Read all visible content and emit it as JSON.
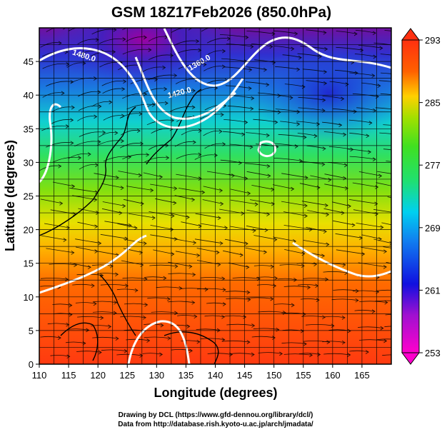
{
  "title": "GSM 18Z17Feb2026 (850.0hPa)",
  "x_axis": {
    "label": "Longitude (degrees)",
    "range": [
      110,
      170
    ],
    "ticks": [
      "110",
      "115",
      "120",
      "125",
      "130",
      "135",
      "140",
      "145",
      "150",
      "155",
      "160",
      "165"
    ]
  },
  "y_axis": {
    "label": "Latitude  (degrees)",
    "range": [
      0,
      50
    ],
    "ticks": [
      "0",
      "5",
      "10",
      "15",
      "20",
      "25",
      "30",
      "35",
      "40",
      "45"
    ]
  },
  "colorbar": {
    "range": [
      253,
      293
    ],
    "tick_labels": [
      "293",
      "285",
      "277",
      "269",
      "261",
      "253"
    ],
    "tick_values": [
      293,
      285,
      277,
      269,
      261,
      253
    ],
    "colors": [
      "#ff00cc",
      "#1010e0",
      "#00d0f0",
      "#20e070",
      "#40e020",
      "#a0e000",
      "#ffd000",
      "#ff6000",
      "#ff3010"
    ]
  },
  "contour_labels": [
    {
      "text": "1480.0",
      "lon": 117.5,
      "lat": 45.5,
      "angle": 18
    },
    {
      "text": "1360.0",
      "lon": 137.5,
      "lat": 44.5,
      "angle": -30
    },
    {
      "text": "1420.0",
      "lon": 134.0,
      "lat": 40.0,
      "angle": -15
    }
  ],
  "credits": {
    "line1": "Drawing by DCL (https://www.gfd-dennou.org/library/dcl/)",
    "line2": "Data from http://database.rish.kyoto-u.ac.jp/arch/jmadata/"
  }
}
